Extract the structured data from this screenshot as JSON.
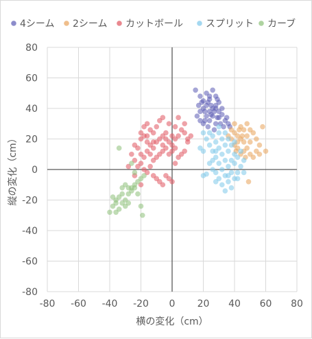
{
  "chart_data": {
    "type": "scatter",
    "xlabel": "横の変化（cm）",
    "ylabel": "縦の変化（cm）",
    "xlim": [
      -80,
      80
    ],
    "ylim": [
      -80,
      80
    ],
    "x_ticks": [
      -80,
      -60,
      -40,
      -20,
      0,
      20,
      40,
      60,
      80
    ],
    "y_ticks": [
      80,
      60,
      40,
      20,
      0,
      -20,
      -40,
      -60,
      -80
    ],
    "grid": true,
    "legend_position": "top",
    "series": [
      {
        "name": "4シーム",
        "color": "#5b5bb5",
        "points": [
          [
            15,
            52
          ],
          [
            18,
            48
          ],
          [
            20,
            45
          ],
          [
            22,
            50
          ],
          [
            24,
            46
          ],
          [
            26,
            52
          ],
          [
            28,
            48
          ],
          [
            30,
            44
          ],
          [
            32,
            40
          ],
          [
            20,
            40
          ],
          [
            22,
            42
          ],
          [
            24,
            38
          ],
          [
            26,
            40
          ],
          [
            28,
            42
          ],
          [
            30,
            38
          ],
          [
            18,
            38
          ],
          [
            16,
            35
          ],
          [
            18,
            32
          ],
          [
            20,
            30
          ],
          [
            22,
            35
          ],
          [
            24,
            32
          ],
          [
            26,
            35
          ],
          [
            28,
            30
          ],
          [
            30,
            34
          ],
          [
            32,
            36
          ],
          [
            34,
            32
          ],
          [
            36,
            30
          ],
          [
            19,
            44
          ],
          [
            21,
            38
          ],
          [
            23,
            44
          ],
          [
            25,
            36
          ],
          [
            27,
            38
          ],
          [
            29,
            46
          ],
          [
            31,
            30
          ],
          [
            33,
            28
          ],
          [
            35,
            34
          ],
          [
            17,
            42
          ],
          [
            25,
            42
          ],
          [
            23,
            28
          ],
          [
            27,
            26
          ],
          [
            37,
            28
          ],
          [
            29,
            34
          ],
          [
            21,
            32
          ],
          [
            24,
            48
          ],
          [
            28,
            40
          ]
        ]
      },
      {
        "name": "2シーム",
        "color": "#e8a35a",
        "points": [
          [
            38,
            26
          ],
          [
            40,
            24
          ],
          [
            42,
            22
          ],
          [
            44,
            20
          ],
          [
            46,
            18
          ],
          [
            48,
            22
          ],
          [
            50,
            26
          ],
          [
            52,
            24
          ],
          [
            54,
            20
          ],
          [
            56,
            16
          ],
          [
            58,
            28
          ],
          [
            60,
            12
          ],
          [
            40,
            16
          ],
          [
            42,
            14
          ],
          [
            44,
            10
          ],
          [
            46,
            12
          ],
          [
            48,
            14
          ],
          [
            50,
            10
          ],
          [
            52,
            8
          ],
          [
            38,
            20
          ],
          [
            40,
            30
          ],
          [
            44,
            28
          ],
          [
            46,
            26
          ],
          [
            48,
            30
          ],
          [
            42,
            18
          ],
          [
            36,
            22
          ],
          [
            50,
            18
          ],
          [
            54,
            12
          ],
          [
            45,
            22
          ],
          [
            47,
            8
          ],
          [
            43,
            26
          ],
          [
            41,
            12
          ],
          [
            49,
            -8
          ],
          [
            56,
            10
          ]
        ]
      },
      {
        "name": "カットボール",
        "color": "#e05560",
        "points": [
          [
            -20,
            20
          ],
          [
            -18,
            22
          ],
          [
            -16,
            18
          ],
          [
            -14,
            16
          ],
          [
            -12,
            14
          ],
          [
            -10,
            18
          ],
          [
            -8,
            20
          ],
          [
            -6,
            22
          ],
          [
            -4,
            24
          ],
          [
            -2,
            18
          ],
          [
            0,
            16
          ],
          [
            2,
            20
          ],
          [
            4,
            22
          ],
          [
            6,
            26
          ],
          [
            8,
            24
          ],
          [
            10,
            20
          ],
          [
            -22,
            14
          ],
          [
            -20,
            10
          ],
          [
            -18,
            8
          ],
          [
            -16,
            12
          ],
          [
            -14,
            10
          ],
          [
            -12,
            6
          ],
          [
            -10,
            8
          ],
          [
            -8,
            10
          ],
          [
            -6,
            12
          ],
          [
            -4,
            14
          ],
          [
            -2,
            10
          ],
          [
            0,
            12
          ],
          [
            2,
            14
          ],
          [
            4,
            8
          ],
          [
            6,
            10
          ],
          [
            8,
            12
          ],
          [
            -24,
            6
          ],
          [
            -22,
            2
          ],
          [
            -20,
            4
          ],
          [
            -18,
            0
          ],
          [
            -16,
            -2
          ],
          [
            -14,
            2
          ],
          [
            -12,
            -4
          ],
          [
            -10,
            -6
          ],
          [
            -8,
            -8
          ],
          [
            -6,
            -10
          ],
          [
            -4,
            -4
          ],
          [
            -2,
            -6
          ],
          [
            0,
            -8
          ],
          [
            -20,
            24
          ],
          [
            -18,
            28
          ],
          [
            -16,
            30
          ],
          [
            -14,
            26
          ],
          [
            -12,
            24
          ],
          [
            -10,
            28
          ],
          [
            -8,
            32
          ],
          [
            -6,
            34
          ],
          [
            -2,
            30
          ],
          [
            2,
            28
          ],
          [
            4,
            34
          ],
          [
            8,
            30
          ],
          [
            10,
            18
          ],
          [
            12,
            22
          ],
          [
            -26,
            10
          ],
          [
            -24,
            16
          ],
          [
            -28,
            2
          ],
          [
            -16,
            22
          ],
          [
            -6,
            16
          ],
          [
            0,
            22
          ],
          [
            -12,
            18
          ],
          [
            -4,
            20
          ],
          [
            2,
            4
          ],
          [
            -24,
            -4
          ],
          [
            -20,
            -10
          ]
        ]
      },
      {
        "name": "スプリット",
        "color": "#7ec8ea",
        "points": [
          [
            22,
            20
          ],
          [
            24,
            16
          ],
          [
            26,
            12
          ],
          [
            28,
            8
          ],
          [
            30,
            4
          ],
          [
            32,
            0
          ],
          [
            34,
            -4
          ],
          [
            36,
            -8
          ],
          [
            38,
            -12
          ],
          [
            40,
            -6
          ],
          [
            42,
            -2
          ],
          [
            44,
            2
          ],
          [
            46,
            6
          ],
          [
            26,
            22
          ],
          [
            28,
            18
          ],
          [
            30,
            14
          ],
          [
            32,
            10
          ],
          [
            34,
            6
          ],
          [
            36,
            2
          ],
          [
            38,
            -2
          ],
          [
            40,
            4
          ],
          [
            42,
            8
          ],
          [
            20,
            12
          ],
          [
            22,
            -3
          ],
          [
            24,
            4
          ],
          [
            26,
            0
          ],
          [
            28,
            -2
          ],
          [
            30,
            -6
          ],
          [
            32,
            -10
          ],
          [
            34,
            -14
          ],
          [
            36,
            -4
          ],
          [
            38,
            6
          ],
          [
            40,
            10
          ],
          [
            30,
            24
          ],
          [
            32,
            20
          ],
          [
            34,
            16
          ],
          [
            36,
            12
          ],
          [
            20,
            24
          ],
          [
            18,
            14
          ],
          [
            26,
            6
          ],
          [
            34,
            24
          ],
          [
            28,
            -8
          ],
          [
            44,
            12
          ],
          [
            38,
            16
          ],
          [
            42,
            -6
          ],
          [
            24,
            24
          ],
          [
            30,
            28
          ],
          [
            36,
            20
          ],
          [
            46,
            -2
          ],
          [
            40,
            18
          ],
          [
            20,
            -4
          ],
          [
            28,
            12
          ]
        ]
      },
      {
        "name": "カーブ",
        "color": "#8cc078",
        "points": [
          [
            -40,
            -28
          ],
          [
            -38,
            -24
          ],
          [
            -36,
            -20
          ],
          [
            -34,
            -18
          ],
          [
            -32,
            -22
          ],
          [
            -30,
            -20
          ],
          [
            -28,
            -16
          ],
          [
            -26,
            -12
          ],
          [
            -24,
            -10
          ],
          [
            -22,
            -8
          ],
          [
            -20,
            -6
          ],
          [
            -18,
            -4
          ],
          [
            -38,
            -18
          ],
          [
            -36,
            -22
          ],
          [
            -34,
            -26
          ],
          [
            -32,
            -16
          ],
          [
            -30,
            -10
          ],
          [
            -28,
            -12
          ],
          [
            -26,
            -14
          ],
          [
            -24,
            -12
          ],
          [
            -22,
            -16
          ],
          [
            -20,
            -24
          ],
          [
            -19,
            -30
          ],
          [
            -34,
            14
          ],
          [
            -26,
            4
          ],
          [
            -24,
            -2
          ],
          [
            -36,
            -28
          ],
          [
            -30,
            -24
          ],
          [
            -28,
            -22
          ],
          [
            -32,
            -12
          ]
        ]
      }
    ]
  }
}
